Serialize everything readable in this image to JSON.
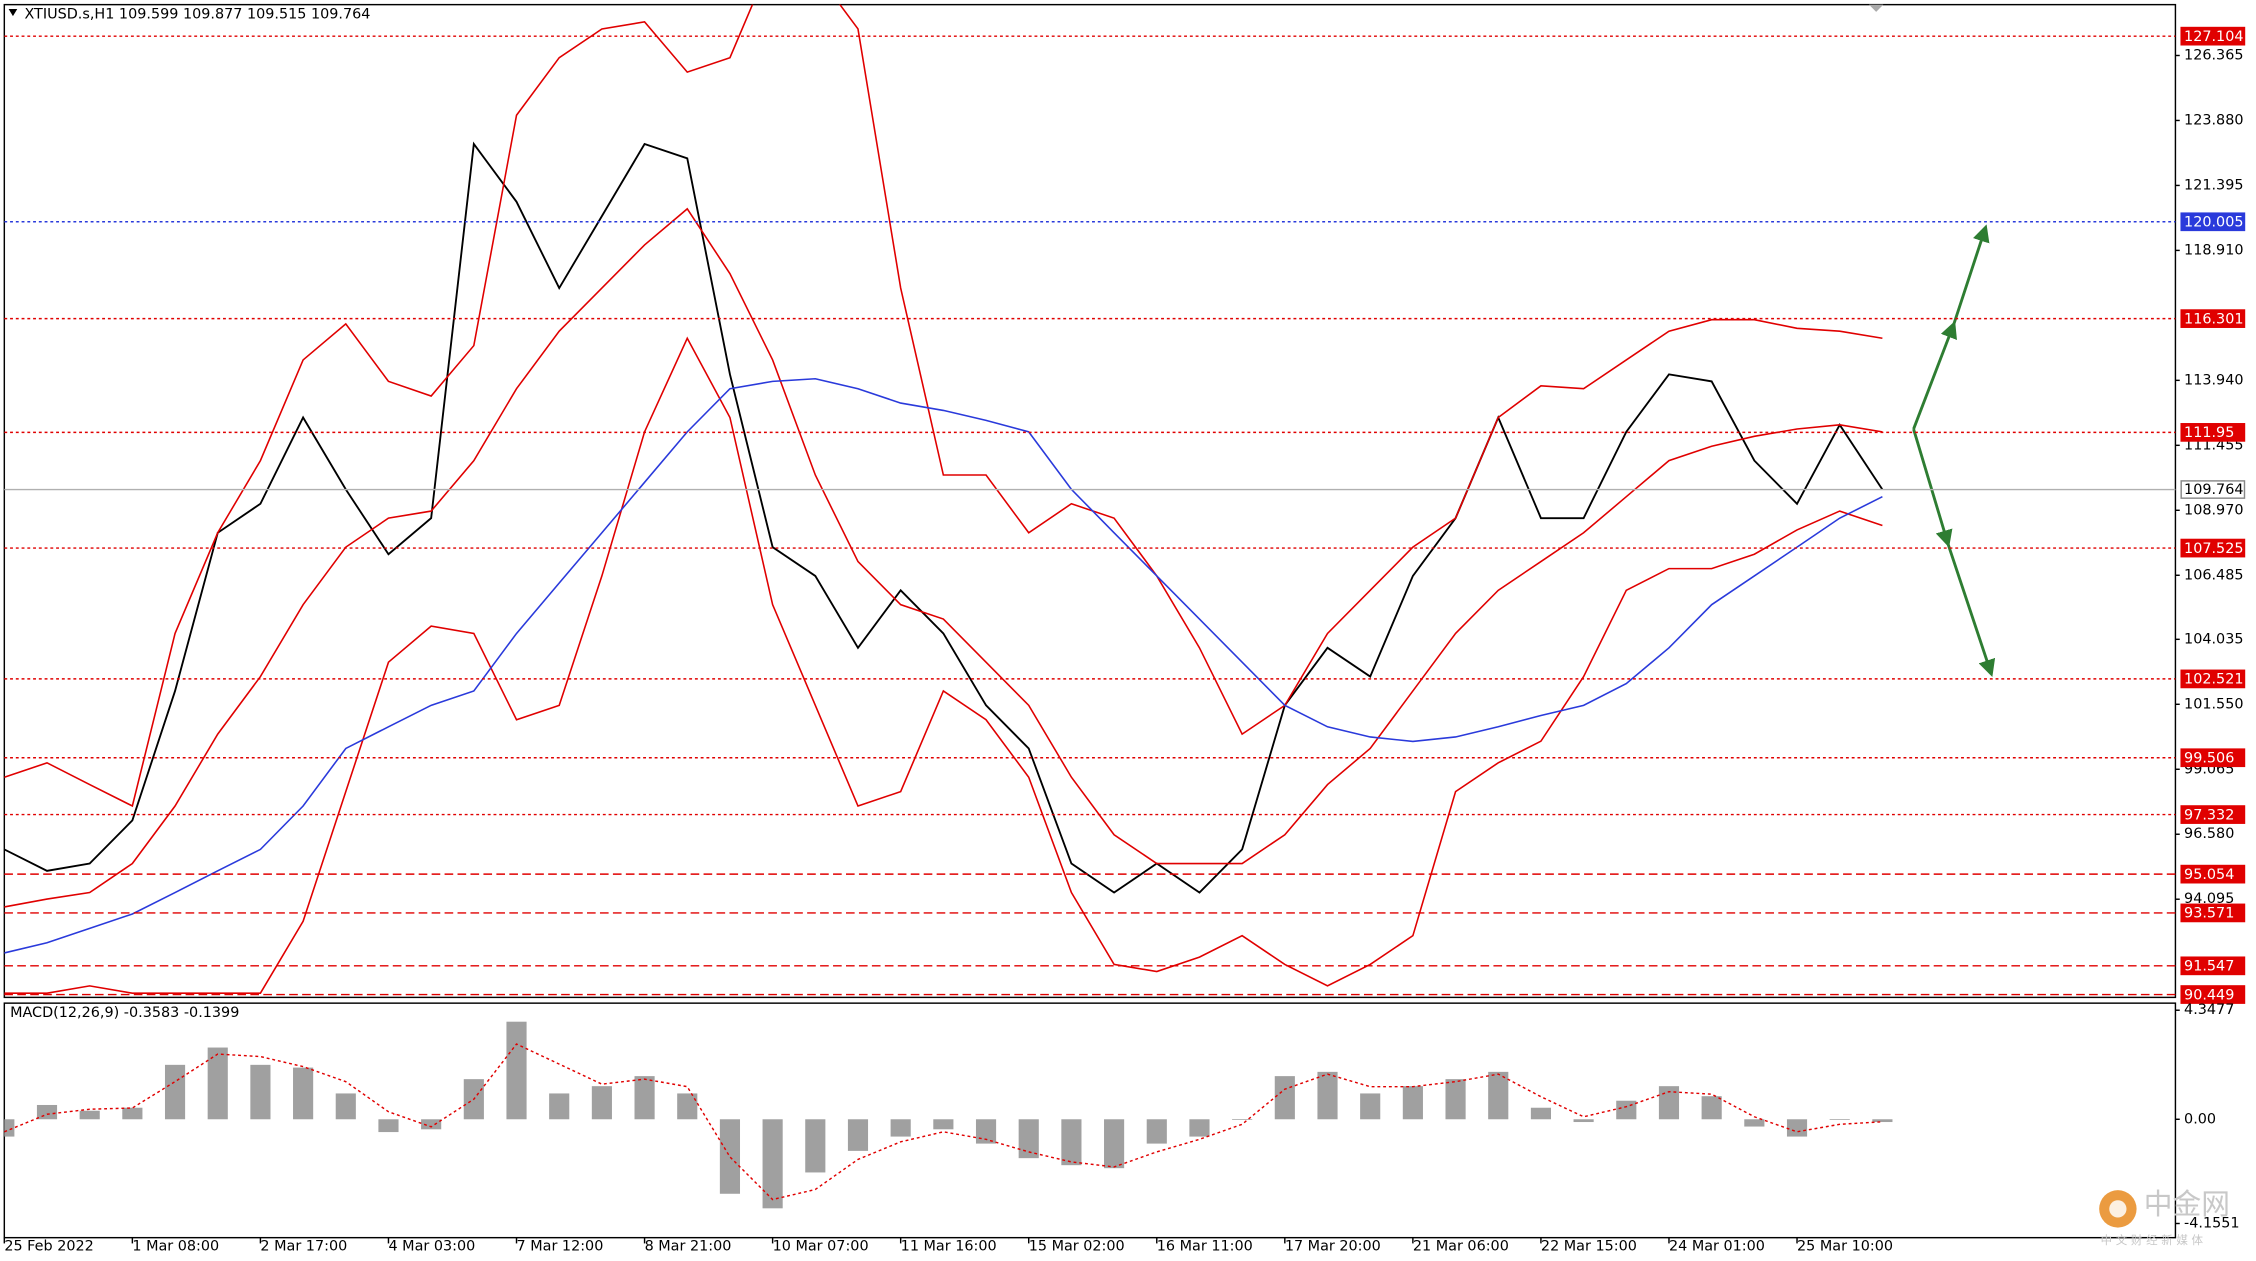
{
  "chart_data": [
    {
      "type": "line",
      "title": "XTIUSD.s,H1  109.599 109.877 109.515 109.764",
      "categories": [
        "25 Feb 2022",
        null,
        null,
        "1 Mar 08:00",
        null,
        null,
        "2 Mar 17:00",
        null,
        null,
        "4 Mar 03:00",
        null,
        null,
        "7 Mar 12:00",
        null,
        null,
        "8 Mar 21:00",
        null,
        null,
        "10 Mar 07:00",
        null,
        null,
        "11 Mar 16:00",
        null,
        null,
        "15 Mar 02:00",
        null,
        null,
        "16 Mar 11:00",
        null,
        null,
        "17 Mar 20:00",
        null,
        null,
        "21 Mar 06:00",
        null,
        null,
        "22 Mar 15:00",
        null,
        null,
        "24 Mar 01:00",
        null,
        null,
        "25 Mar 10:00",
        null,
        null
      ],
      "ylim": [
        90.34,
        128.31
      ],
      "yticks": [
        126.365,
        {
          "value": 123.88,
          "label": "123.880"
        },
        121.395,
        {
          "value": 118.91,
          "label": "118.910"
        },
        {
          "value": 113.94,
          "label": "113.940"
        },
        111.455,
        {
          "value": 108.97,
          "label": "108.970"
        },
        106.485,
        104.035,
        {
          "value": 101.55,
          "label": "101.550"
        },
        99.065,
        {
          "value": 96.58,
          "label": "96.580"
        },
        94.095
      ],
      "series": [
        {
          "color": "#000000",
          "values": [
            96.0,
            95.18,
            95.46,
            97.11,
            102.06,
            108.11,
            109.22,
            112.52,
            109.77,
            107.29,
            108.67,
            122.98,
            120.77,
            117.47,
            120.22,
            122.98,
            122.43,
            114.17,
            107.56,
            106.46,
            103.71,
            105.91,
            104.26,
            101.51,
            99.86,
            95.46,
            94.35,
            95.46,
            94.35,
            96.0,
            101.51,
            103.71,
            102.61,
            106.46,
            108.67,
            112.52,
            108.67,
            108.67,
            111.97,
            114.17,
            113.9,
            110.87,
            109.22,
            112.24,
            109.764
          ]
        },
        {
          "color": "#e00000",
          "values": [
            98.76,
            99.31,
            98.48,
            97.66,
            104.26,
            108.11,
            110.87,
            114.72,
            116.1,
            113.9,
            113.34,
            115.27,
            124.08,
            126.28,
            127.38,
            127.65,
            125.73,
            126.28,
            130.13,
            129.58,
            127.38,
            117.47,
            110.32,
            110.32,
            108.11,
            109.22,
            108.67,
            106.46,
            103.71,
            100.41,
            101.51,
            104.26,
            105.91,
            107.56,
            108.67,
            112.52,
            113.73,
            113.62,
            114.72,
            115.82,
            116.26,
            116.26,
            115.93,
            115.82,
            115.55
          ]
        },
        {
          "color": "#e00000",
          "values": [
            93.8,
            94.1,
            94.35,
            95.46,
            97.66,
            100.41,
            102.61,
            105.36,
            107.56,
            108.67,
            108.94,
            110.87,
            113.62,
            115.82,
            117.47,
            119.12,
            120.5,
            118.02,
            114.72,
            110.32,
            107.01,
            105.36,
            104.81,
            103.16,
            101.51,
            98.76,
            96.56,
            95.46,
            95.46,
            95.46,
            96.56,
            98.48,
            99.86,
            102.06,
            104.26,
            105.91,
            107.01,
            108.11,
            109.49,
            110.87,
            111.42,
            111.8,
            112.08,
            112.24,
            111.97
          ]
        },
        {
          "color": "#e00000",
          "values": [
            90.5,
            90.5,
            90.78,
            90.5,
            90.5,
            90.5,
            90.5,
            93.25,
            98.21,
            103.16,
            104.54,
            104.26,
            100.96,
            101.51,
            106.46,
            111.97,
            115.55,
            112.52,
            105.36,
            101.51,
            97.66,
            98.21,
            102.06,
            100.96,
            98.76,
            94.35,
            91.6,
            91.33,
            91.88,
            92.7,
            91.6,
            90.78,
            91.6,
            92.7,
            98.21,
            99.31,
            100.14,
            102.61,
            105.91,
            106.74,
            106.74,
            107.29,
            108.22,
            108.94,
            108.39
          ]
        },
        {
          "color": "#2a3adb",
          "values": [
            92.04,
            92.43,
            92.98,
            93.53,
            94.35,
            95.18,
            96.0,
            97.66,
            99.86,
            100.69,
            101.51,
            102.06,
            104.26,
            106.19,
            108.11,
            110.04,
            111.97,
            113.62,
            113.9,
            114.0,
            113.62,
            113.07,
            112.79,
            112.41,
            111.97,
            109.77,
            108.11,
            106.46,
            104.81,
            103.16,
            101.51,
            100.69,
            100.3,
            100.13,
            100.3,
            100.69,
            101.12,
            101.51,
            102.34,
            103.71,
            105.36,
            106.46,
            107.56,
            108.67,
            109.49
          ]
        }
      ],
      "levels": [
        {
          "value": 127.104,
          "color": "#e00000",
          "style": "dotted"
        },
        {
          "value": 120.005,
          "color": "#2a3adb",
          "style": "dotted"
        },
        {
          "value": 116.301,
          "color": "#e00000",
          "style": "dotted"
        },
        {
          "value": 111.95,
          "color": "#e00000",
          "style": "dotted"
        },
        {
          "value": 109.764,
          "color": "#b0b0b0",
          "style": "solid"
        },
        {
          "value": 107.525,
          "color": "#e00000",
          "style": "dotted"
        },
        {
          "value": 102.521,
          "color": "#e00000",
          "style": "dotted"
        },
        {
          "value": 99.506,
          "color": "#e00000",
          "style": "dotted"
        },
        {
          "value": 97.332,
          "color": "#e00000",
          "style": "dotted"
        },
        {
          "value": 95.054,
          "color": "#e00000",
          "style": "dashed"
        },
        {
          "value": 93.571,
          "color": "#e00000",
          "style": "dashed"
        },
        {
          "value": 91.547,
          "color": "#e00000",
          "style": "dashed"
        },
        {
          "value": 90.449,
          "color": "#e00000",
          "style": "dashed"
        }
      ]
    },
    {
      "type": "bar",
      "title": "MACD(12,26,9) -0.3583 -0.1399",
      "ylim": [
        -4.72,
        4.63
      ],
      "yticks": [
        4.3477,
        {
          "value": 0,
          "label": "0.00"
        },
        -4.1551
      ],
      "color": "#a0a0a0",
      "values": [
        -0.69,
        0.57,
        0.34,
        0.46,
        2.17,
        2.86,
        2.17,
        2.06,
        1.03,
        -0.51,
        -0.4,
        1.6,
        3.89,
        1.03,
        1.32,
        1.72,
        1.03,
        -2.97,
        -3.55,
        -2.12,
        -1.26,
        -0.69,
        -0.4,
        -0.97,
        -1.55,
        -1.83,
        -1.95,
        -0.97,
        -0.69,
        0,
        1.72,
        1.89,
        1.03,
        1.32,
        1.6,
        1.89,
        0.46,
        -0.11,
        0.74,
        1.32,
        0.92,
        -0.29,
        -0.69,
        0,
        -0.11
      ],
      "signal": {
        "color": "#e00000",
        "values": [
          -0.5,
          0.2,
          0.4,
          0.45,
          1.5,
          2.6,
          2.5,
          2.1,
          1.5,
          0.3,
          -0.3,
          0.8,
          3.0,
          2.2,
          1.4,
          1.6,
          1.3,
          -1.5,
          -3.2,
          -2.8,
          -1.6,
          -0.9,
          -0.5,
          -0.8,
          -1.3,
          -1.7,
          -1.9,
          -1.3,
          -0.8,
          -0.2,
          1.2,
          1.8,
          1.3,
          1.3,
          1.5,
          1.8,
          0.9,
          0.1,
          0.5,
          1.1,
          1.0,
          0.1,
          -0.5,
          -0.2,
          -0.1
        ]
      }
    }
  ],
  "watermark": {
    "logo": "中金网",
    "sub": "中 文 财 经 新 媒 体"
  }
}
